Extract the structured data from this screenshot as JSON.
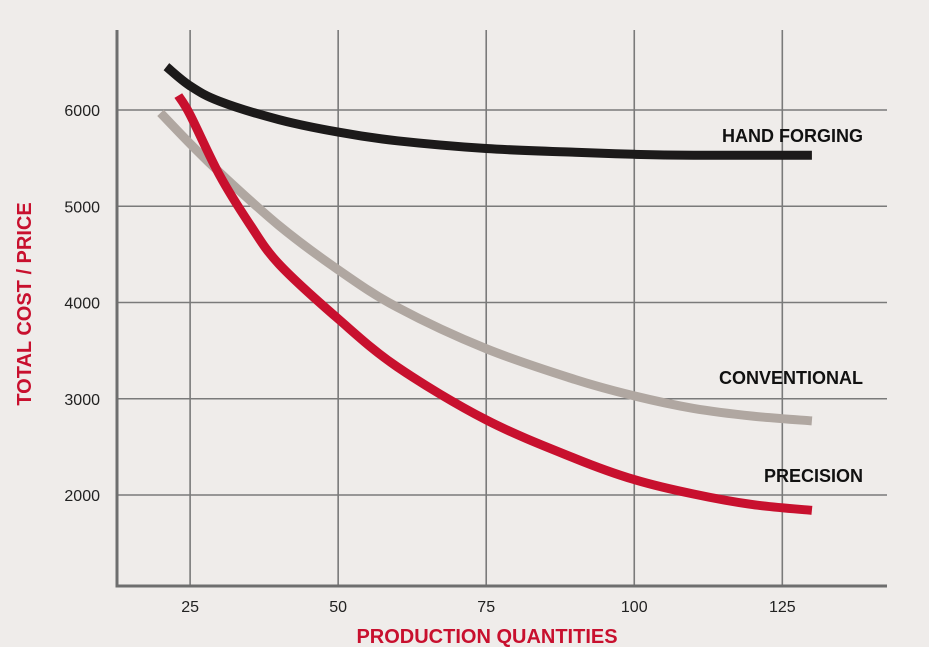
{
  "chart_data": {
    "type": "line",
    "xlabel": "PRODUCTION QUANTITIES",
    "ylabel": "TOTAL COST / PRICE",
    "xlim": [
      0,
      130
    ],
    "ylim": [
      1000,
      7000
    ],
    "x_ticks": [
      25,
      50,
      75,
      100,
      125
    ],
    "y_ticks": [
      2000,
      3000,
      4000,
      5000,
      6000
    ],
    "grid": true,
    "legend": "inline labels near curve ends",
    "series": [
      {
        "name": "HAND FORGING",
        "color": "#1c1a1a",
        "x": [
          21,
          25,
          30,
          40,
          50,
          60,
          75,
          90,
          100,
          110,
          120,
          130
        ],
        "y": [
          6450,
          6250,
          6090,
          5900,
          5770,
          5680,
          5600,
          5560,
          5540,
          5530,
          5530,
          5530
        ]
      },
      {
        "name": "CONVENTIONAL",
        "color": "#b0a7a1",
        "x": [
          20,
          25,
          30,
          40,
          50,
          60,
          75,
          90,
          100,
          110,
          120,
          130
        ],
        "y": [
          5970,
          5650,
          5350,
          4800,
          4340,
          3950,
          3520,
          3200,
          3030,
          2900,
          2820,
          2770
        ]
      },
      {
        "name": "PRECISION",
        "color": "#c8102e",
        "x": [
          23,
          25,
          30,
          35,
          40,
          50,
          60,
          75,
          90,
          100,
          110,
          120,
          130
        ],
        "y": [
          6150,
          5950,
          5320,
          4820,
          4400,
          3830,
          3330,
          2780,
          2380,
          2160,
          2010,
          1900,
          1840
        ]
      }
    ]
  },
  "styles": {
    "background": "#efecea",
    "grid_color": "#7a7a7a",
    "axis_color": "#6e6e6e",
    "axis_title_color": "#c8102e"
  }
}
